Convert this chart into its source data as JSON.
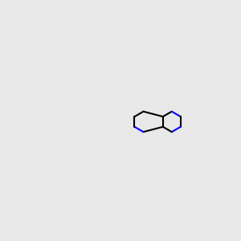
{
  "bg_color": "#e8e8e8",
  "bond_color": "#000000",
  "N_color": "#0000ff",
  "O_color": "#ff0000",
  "H_color": "#4a9090",
  "C_color": "#000000",
  "line_width": 1.5,
  "font_size": 8.5
}
